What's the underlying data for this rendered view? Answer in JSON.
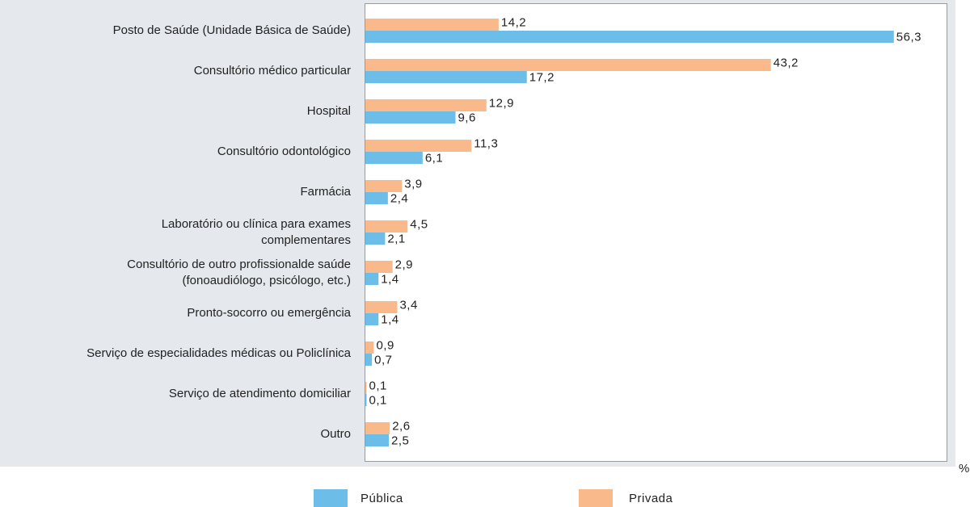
{
  "chart_data": {
    "type": "barh",
    "categories": [
      "Posto de Saúde (Unidade Básica de Saúde)",
      "Consultório médico particular",
      "Hospital",
      "Consultório odontológico",
      "Farmácia",
      "Laboratório ou clínica para exames\ncomplementares",
      "Consultório de outro profissionalde saúde\n(fonoaudiólogo, psicólogo, etc.)",
      "Pronto-socorro ou emergência",
      "Serviço de especialidades médicas ou Policlínica",
      "Serviço de atendimento domiciliar",
      "Outro"
    ],
    "series": [
      {
        "name": "Pública",
        "color": "#6dbde9",
        "values": [
          56.3,
          17.2,
          9.6,
          6.1,
          2.4,
          2.1,
          1.4,
          1.4,
          0.7,
          0.1,
          2.5
        ],
        "value_labels": [
          "56,3",
          "17,2",
          "9,6",
          "6,1",
          "2,4",
          "2,1",
          "1,4",
          "1,4",
          "0,7",
          "0,1",
          "2,5"
        ]
      },
      {
        "name": "Privada",
        "color": "#f9b98a",
        "values": [
          14.2,
          43.2,
          12.9,
          11.3,
          3.9,
          4.5,
          2.9,
          3.4,
          0.9,
          0.1,
          2.6
        ],
        "value_labels": [
          "14,2",
          "43,2",
          "12,9",
          "11,3",
          "3,9",
          "4,5",
          "2,9",
          "3,4",
          "0,9",
          "0,1",
          "2,6"
        ]
      }
    ],
    "xlabel": "%",
    "xlim": [
      0,
      62
    ],
    "legend": "bottom"
  }
}
